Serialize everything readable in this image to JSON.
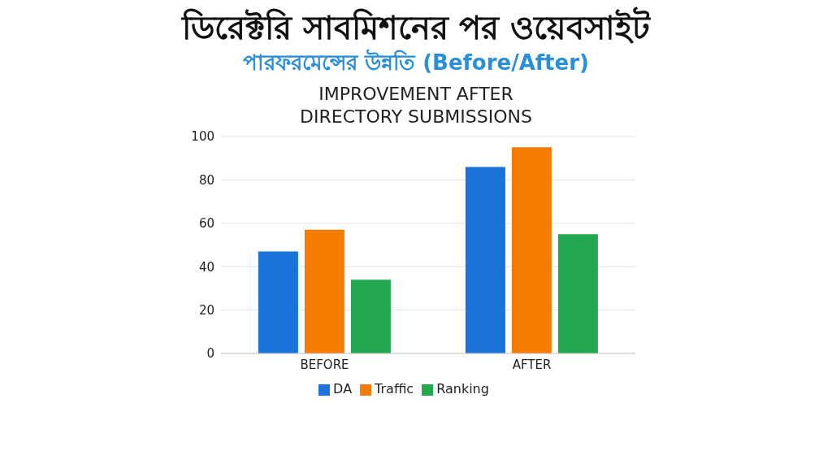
{
  "chart_data": {
    "type": "bar",
    "title": "ডিরেক্টরি সাবমিশনের পর ওয়েবসাইট",
    "subtitle": "পারফরমেন্সের উন্নতি (Before/After)",
    "annotations": [
      "IMPROVEMENT AFTER\nDIRECTORY SUBMISSIONS"
    ],
    "categories": [
      "BEFORE",
      "AFTER"
    ],
    "series": [
      {
        "name": "DA",
        "color": "#1a73d9",
        "values": [
          47,
          86
        ]
      },
      {
        "name": "Traffic",
        "color": "#f57c00",
        "values": [
          57,
          95
        ]
      },
      {
        "name": "Ranking",
        "color": "#22a94f",
        "values": [
          34,
          55
        ]
      }
    ],
    "ylim": [
      0,
      100
    ],
    "yticks": [
      0,
      20,
      40,
      60,
      80,
      100
    ],
    "grid": "y",
    "legend": "bottom"
  }
}
